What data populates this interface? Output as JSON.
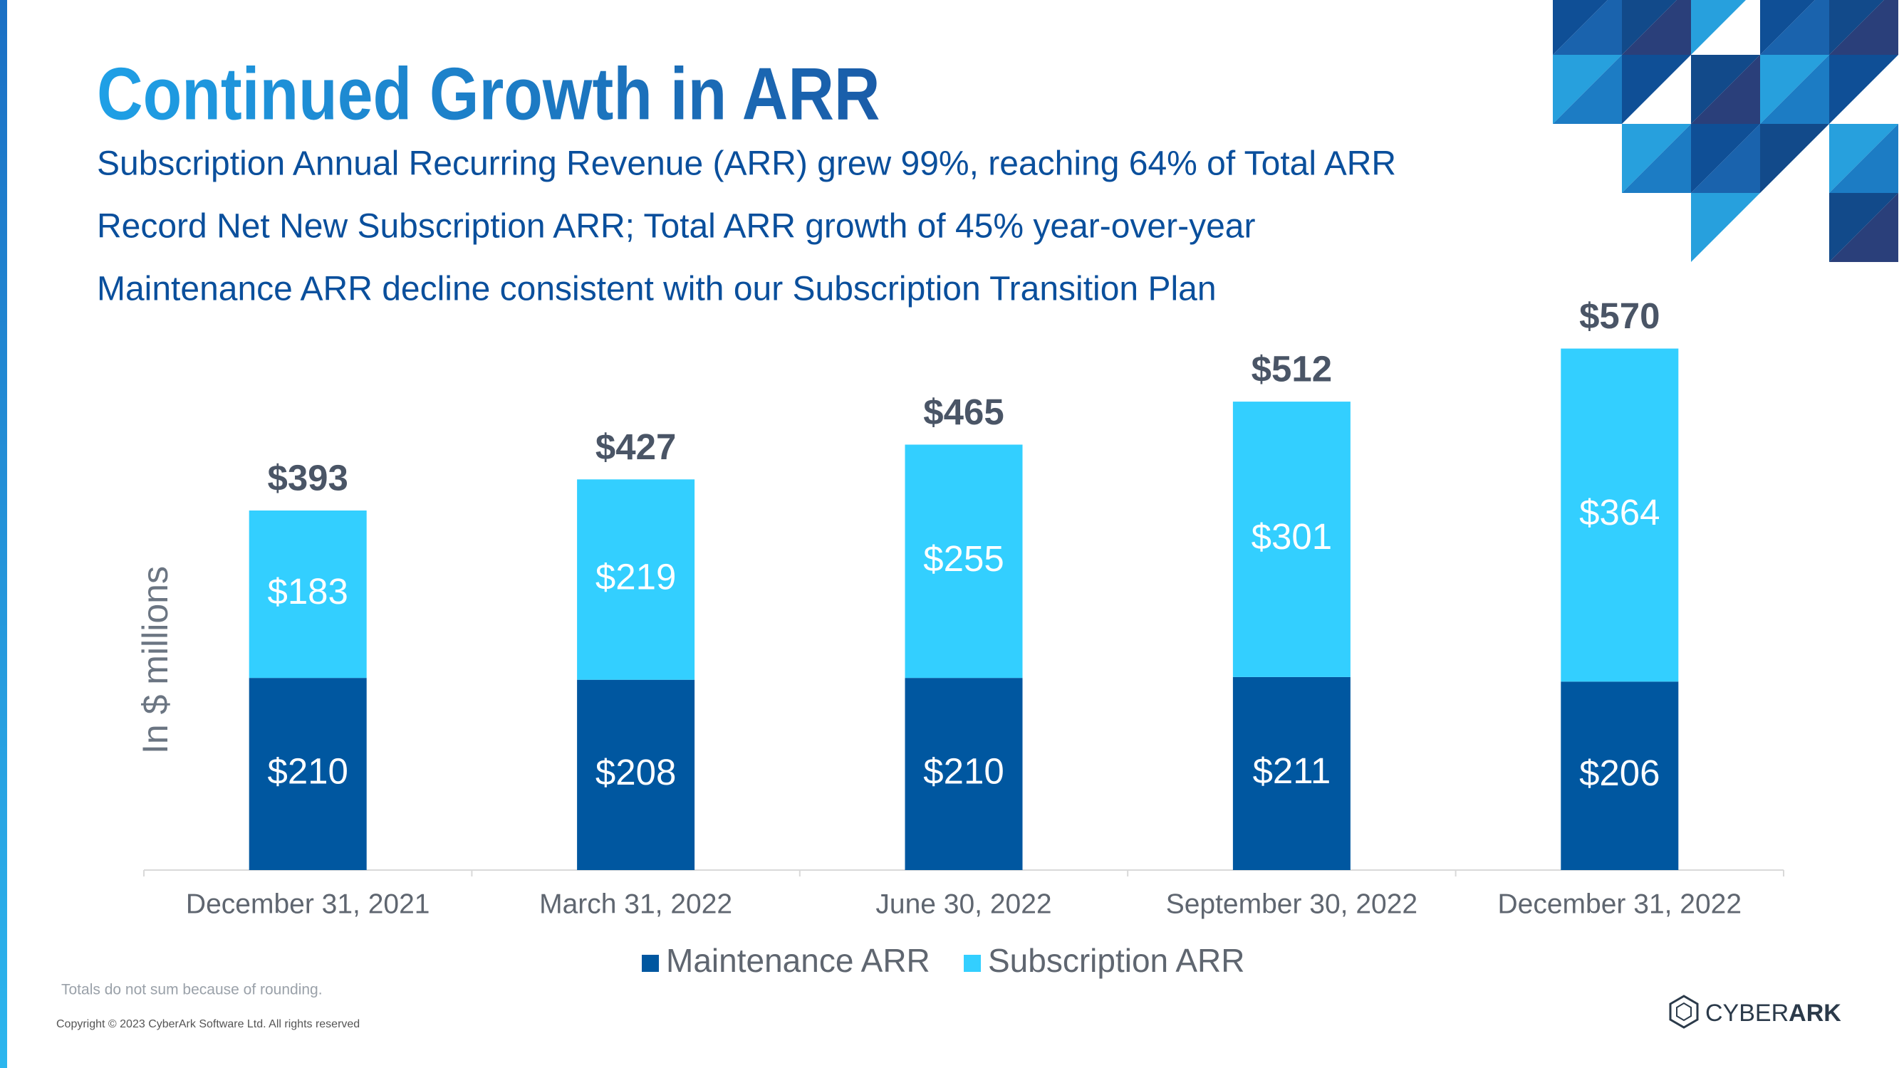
{
  "title": "Continued Growth in ARR",
  "bullets": [
    "Subscription Annual Recurring Revenue (ARR) grew 99%, reaching 64% of Total ARR",
    "Record Net New Subscription ARR; Total ARR growth of 45% year-over-year",
    "Maintenance ARR decline consistent with our Subscription Transition Plan"
  ],
  "chart_data": {
    "type": "stacked_bar",
    "y_label": "In $ millions",
    "categories": [
      "December 31, 2021",
      "March 31, 2022",
      "June 30, 2022",
      "September 30, 2022",
      "December 31, 2022"
    ],
    "series": [
      {
        "name": "Maintenance ARR",
        "color": "#0057a0",
        "values": [
          210,
          208,
          210,
          211,
          206
        ],
        "value_labels": [
          "$210",
          "$208",
          "$210",
          "$211",
          "$206"
        ]
      },
      {
        "name": "Subscription ARR",
        "color": "#33cfff",
        "values": [
          183,
          219,
          255,
          301,
          364
        ],
        "value_labels": [
          "$183",
          "$219",
          "$255",
          "$301",
          "$364"
        ]
      }
    ],
    "totals": {
      "values": [
        393,
        427,
        465,
        512,
        570
      ],
      "value_labels": [
        "$393",
        "$427",
        "$465",
        "$512",
        "$570"
      ]
    },
    "ylim": [
      0,
      600
    ],
    "legend": "bottom"
  },
  "footnote": "Totals do not sum because of rounding.",
  "copyright": "Copyright © 2023 CyberArk Software Ltd. All rights reserved",
  "logo": {
    "light": "CYBER",
    "bold": "ARK"
  }
}
